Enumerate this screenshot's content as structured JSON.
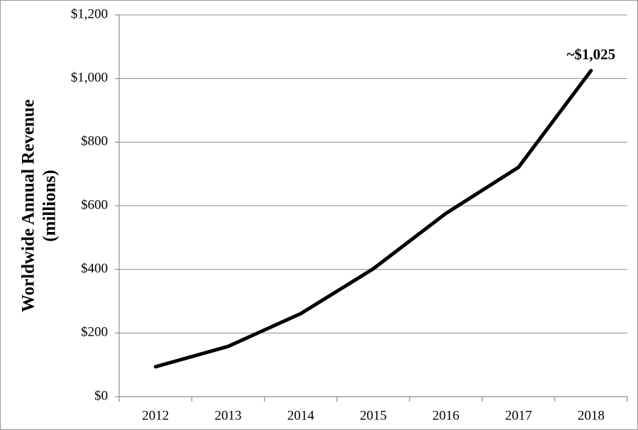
{
  "chart_data": {
    "type": "line",
    "y_label": [
      "Worldwide Annual Revenue",
      "(millions)"
    ],
    "categories": [
      "2012",
      "2013",
      "2014",
      "2015",
      "2016",
      "2017",
      "2018"
    ],
    "series": [
      {
        "name": "Worldwide Annual Revenue",
        "color": "#000000",
        "values": [
          94,
          158,
          261,
          402,
          576,
          721,
          1025
        ]
      }
    ],
    "value_labels": [
      null,
      null,
      null,
      null,
      null,
      null,
      "~$1,025"
    ],
    "ylim": [
      0,
      1200
    ],
    "yticks": [
      {
        "value": 0,
        "label": "$0"
      },
      {
        "value": 200,
        "label": "$200"
      },
      {
        "value": 400,
        "label": "$400"
      },
      {
        "value": 600,
        "label": "$600"
      },
      {
        "value": 800,
        "label": "$800"
      },
      {
        "value": 1000,
        "label": "$1,000"
      },
      {
        "value": 1200,
        "label": "$1,200"
      }
    ],
    "grid": true
  }
}
